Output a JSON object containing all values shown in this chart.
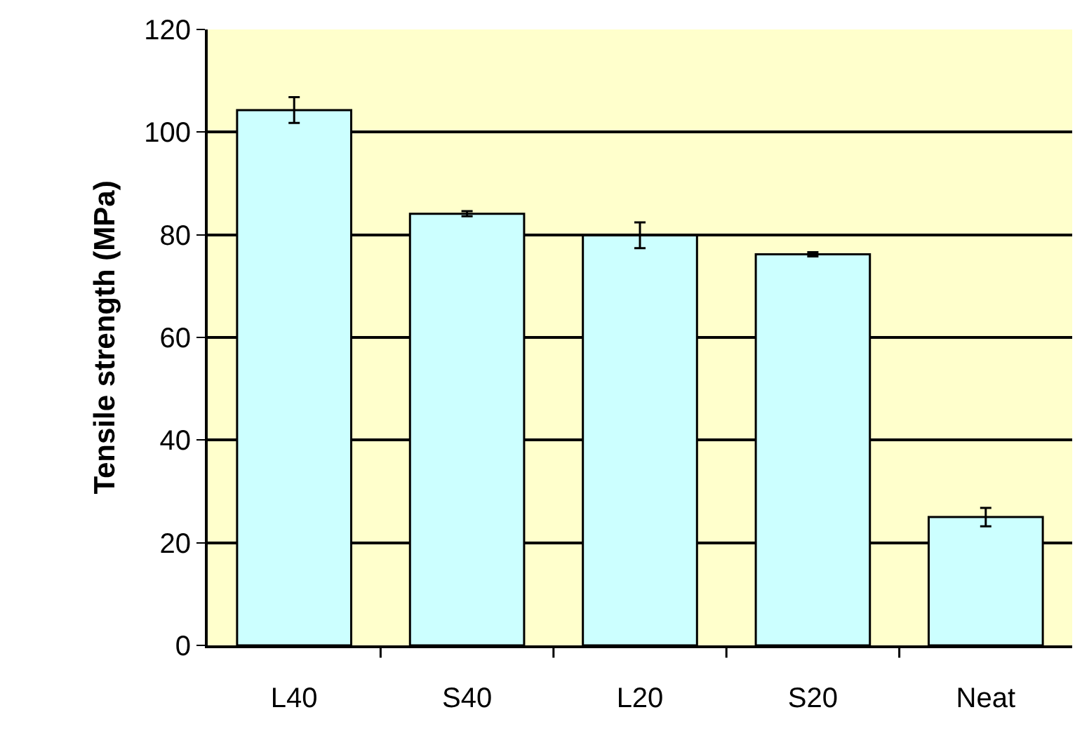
{
  "chart_data": {
    "type": "bar",
    "ylabel": "Tensile strength (MPa)",
    "categories": [
      "L40",
      "S40",
      "L20",
      "S20",
      "Neat"
    ],
    "values": [
      104.3,
      84.1,
      79.9,
      76.2,
      25.0
    ],
    "errors": [
      2.5,
      0.5,
      2.5,
      0.4,
      1.8
    ],
    "color": "#ccffff",
    "ylim": [
      0,
      120
    ],
    "yticks": [
      0,
      20,
      40,
      60,
      80,
      100,
      120
    ],
    "grid": "y"
  }
}
